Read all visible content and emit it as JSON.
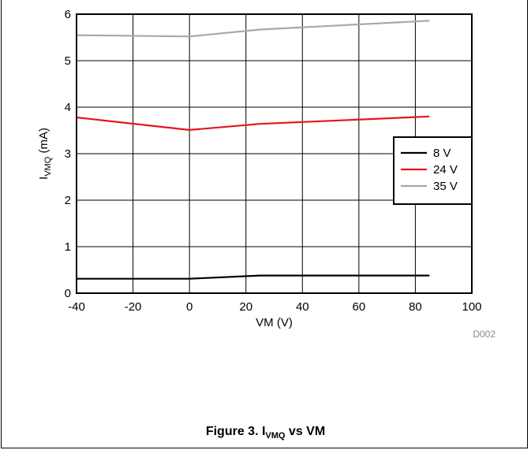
{
  "chart_data": {
    "type": "line",
    "ylabel_main": "I",
    "ylabel_sub": "VMQ",
    "ylabel_unit": " (mA)",
    "xlabel": "VM (V)",
    "xlim": [
      -40,
      100
    ],
    "ylim": [
      0,
      6
    ],
    "xticks": [
      -40,
      -20,
      0,
      20,
      40,
      60,
      80,
      100
    ],
    "yticks": [
      0,
      1,
      2,
      3,
      4,
      5,
      6
    ],
    "grid": true,
    "legend_position": "right-middle",
    "plot_id": "D002",
    "series": [
      {
        "name": "8 V",
        "color": "#000000",
        "x": [
          -40,
          0,
          25,
          85
        ],
        "y": [
          0.31,
          0.31,
          0.38,
          0.38
        ]
      },
      {
        "name": "24 V",
        "color": "#e8141c",
        "x": [
          -40,
          0,
          25,
          85
        ],
        "y": [
          3.78,
          3.51,
          3.64,
          3.8
        ]
      },
      {
        "name": "35 V",
        "color": "#a8a8a8",
        "x": [
          -40,
          0,
          25,
          85
        ],
        "y": [
          5.55,
          5.52,
          5.67,
          5.86
        ]
      }
    ]
  },
  "caption": {
    "prefix": "Figure 3. I",
    "sub": "VMQ",
    "suffix": " vs VM"
  }
}
